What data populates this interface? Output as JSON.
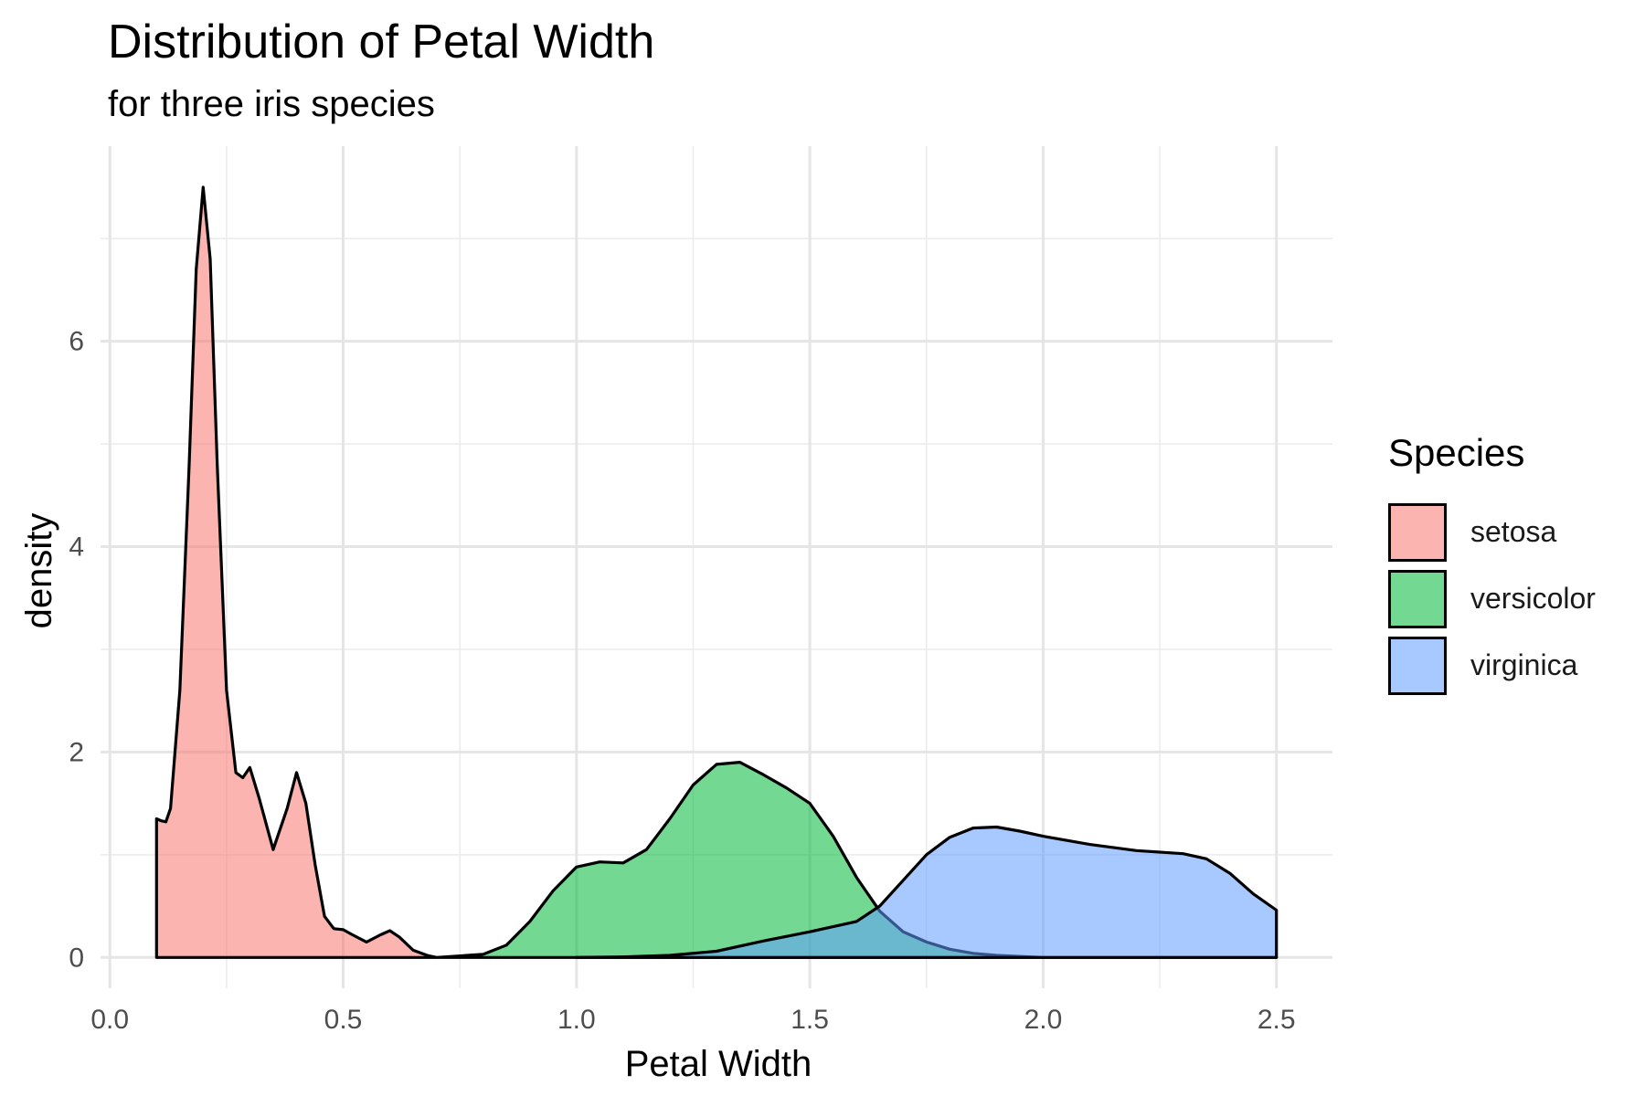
{
  "chart_data": {
    "type": "area",
    "title": "Distribution of Petal Width",
    "subtitle": "for three iris species",
    "xlabel": "Petal Width",
    "ylabel": "density",
    "xlim": [
      -0.02,
      2.62
    ],
    "ylim": [
      -0.3,
      7.9
    ],
    "x_ticks": [
      0.0,
      0.5,
      1.0,
      1.5,
      2.0,
      2.5
    ],
    "x_tick_labels": [
      "0.0",
      "0.5",
      "1.0",
      "1.5",
      "2.0",
      "2.5"
    ],
    "y_ticks": [
      0,
      2,
      4,
      6
    ],
    "y_tick_labels": [
      "0",
      "2",
      "4",
      "6"
    ],
    "grid": true,
    "legend": {
      "title": "Species",
      "position": "right"
    },
    "series": [
      {
        "name": "setosa",
        "color": "#F8766D",
        "points": [
          [
            0.1,
            1.35
          ],
          [
            0.11,
            1.33
          ],
          [
            0.12,
            1.32
          ],
          [
            0.13,
            1.45
          ],
          [
            0.15,
            2.6
          ],
          [
            0.17,
            4.8
          ],
          [
            0.185,
            6.7
          ],
          [
            0.2,
            7.5
          ],
          [
            0.215,
            6.8
          ],
          [
            0.23,
            4.8
          ],
          [
            0.25,
            2.6
          ],
          [
            0.27,
            1.8
          ],
          [
            0.285,
            1.75
          ],
          [
            0.3,
            1.85
          ],
          [
            0.32,
            1.55
          ],
          [
            0.35,
            1.05
          ],
          [
            0.38,
            1.45
          ],
          [
            0.4,
            1.8
          ],
          [
            0.42,
            1.5
          ],
          [
            0.44,
            0.9
          ],
          [
            0.46,
            0.4
          ],
          [
            0.48,
            0.28
          ],
          [
            0.5,
            0.27
          ],
          [
            0.52,
            0.22
          ],
          [
            0.55,
            0.15
          ],
          [
            0.58,
            0.22
          ],
          [
            0.6,
            0.26
          ],
          [
            0.62,
            0.2
          ],
          [
            0.65,
            0.07
          ],
          [
            0.68,
            0.02
          ],
          [
            0.7,
            0.0
          ]
        ]
      },
      {
        "name": "versicolor",
        "color": "#00BA38",
        "points": [
          [
            0.7,
            0.0
          ],
          [
            0.8,
            0.03
          ],
          [
            0.85,
            0.12
          ],
          [
            0.9,
            0.35
          ],
          [
            0.95,
            0.65
          ],
          [
            1.0,
            0.88
          ],
          [
            1.05,
            0.93
          ],
          [
            1.1,
            0.92
          ],
          [
            1.15,
            1.05
          ],
          [
            1.2,
            1.35
          ],
          [
            1.25,
            1.68
          ],
          [
            1.3,
            1.88
          ],
          [
            1.35,
            1.9
          ],
          [
            1.4,
            1.78
          ],
          [
            1.45,
            1.65
          ],
          [
            1.5,
            1.5
          ],
          [
            1.55,
            1.18
          ],
          [
            1.6,
            0.78
          ],
          [
            1.65,
            0.45
          ],
          [
            1.7,
            0.25
          ],
          [
            1.75,
            0.15
          ],
          [
            1.8,
            0.08
          ],
          [
            1.85,
            0.04
          ],
          [
            1.9,
            0.02
          ],
          [
            2.0,
            0.0
          ],
          [
            2.5,
            0.0
          ]
        ]
      },
      {
        "name": "virginica",
        "color": "#619CFF",
        "points": [
          [
            1.0,
            0.0
          ],
          [
            1.1,
            0.005
          ],
          [
            1.2,
            0.02
          ],
          [
            1.3,
            0.06
          ],
          [
            1.4,
            0.16
          ],
          [
            1.5,
            0.25
          ],
          [
            1.6,
            0.35
          ],
          [
            1.65,
            0.5
          ],
          [
            1.7,
            0.75
          ],
          [
            1.75,
            1.0
          ],
          [
            1.8,
            1.17
          ],
          [
            1.85,
            1.26
          ],
          [
            1.9,
            1.27
          ],
          [
            1.95,
            1.23
          ],
          [
            2.0,
            1.18
          ],
          [
            2.1,
            1.1
          ],
          [
            2.2,
            1.04
          ],
          [
            2.3,
            1.01
          ],
          [
            2.35,
            0.96
          ],
          [
            2.4,
            0.82
          ],
          [
            2.45,
            0.62
          ],
          [
            2.5,
            0.46
          ]
        ]
      }
    ]
  }
}
